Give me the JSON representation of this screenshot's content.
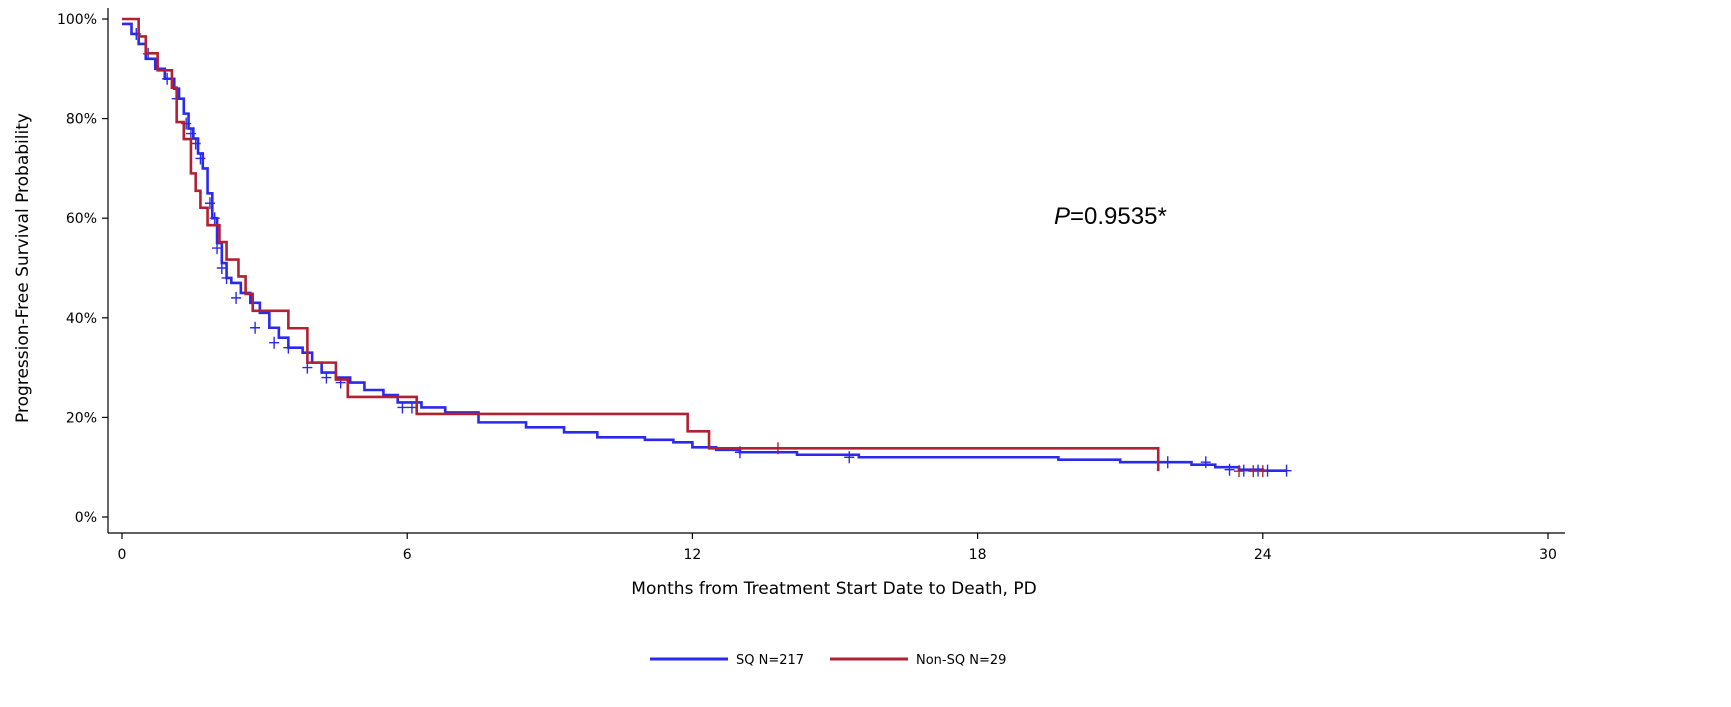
{
  "chart_data": {
    "type": "line",
    "xlabel": "Months from Treatment Start Date to Death, PD",
    "ylabel": "Progression-Free Survival Probability",
    "xlim": [
      0,
      30
    ],
    "ylim": [
      0,
      100
    ],
    "x_ticks": [
      0,
      6,
      12,
      18,
      24,
      30
    ],
    "x_tick_labels": [
      "0",
      "6",
      "12",
      "18",
      "24",
      "30"
    ],
    "y_ticks": [
      0,
      20,
      40,
      60,
      80,
      100
    ],
    "y_tick_labels": [
      "0%",
      "20%",
      "40%",
      "60%",
      "80%",
      "100%"
    ],
    "grid": false,
    "step": true,
    "legend": {
      "placement": "bottom-center"
    },
    "annotation": {
      "p_label": "P",
      "p_value": "=0.9535*"
    },
    "series": [
      {
        "name": "SQ N=217",
        "color": "#2a2aee",
        "x": [
          0,
          0.2,
          0.35,
          0.5,
          0.7,
          0.9,
          1.1,
          1.2,
          1.3,
          1.4,
          1.5,
          1.6,
          1.7,
          1.8,
          1.9,
          2.0,
          2.1,
          2.2,
          2.3,
          2.5,
          2.7,
          2.9,
          3.1,
          3.3,
          3.5,
          3.8,
          4.0,
          4.2,
          4.5,
          4.8,
          5.1,
          5.5,
          5.8,
          6.3,
          6.8,
          7.5,
          8.5,
          9.3,
          10.0,
          11.0,
          11.6,
          12.0,
          12.5,
          13.0,
          14.2,
          15.5,
          19.7,
          21.0,
          22.5,
          23.0,
          23.5,
          24.0,
          24.5
        ],
        "y": [
          99,
          97,
          95,
          92,
          90,
          88,
          86,
          84,
          81,
          78,
          76,
          73,
          70,
          65,
          60,
          55,
          51,
          48,
          47,
          45,
          43,
          41,
          38,
          36,
          34,
          33,
          31,
          29,
          28,
          27,
          25.5,
          24.5,
          23,
          22,
          21,
          19,
          18,
          17,
          16,
          15.5,
          15,
          14,
          13.5,
          13,
          12.5,
          12,
          11.5,
          11,
          10.5,
          10,
          9.5,
          9.3,
          9.3
        ],
        "censor_x": [
          0.3,
          0.55,
          0.95,
          1.15,
          1.35,
          1.45,
          1.55,
          1.65,
          1.85,
          1.95,
          2.0,
          2.1,
          2.2,
          2.4,
          2.8,
          3.2,
          3.5,
          3.9,
          4.3,
          4.6,
          5.9,
          6.1,
          13.0,
          15.3,
          22.0,
          22.8,
          23.3,
          23.6,
          23.9,
          24.1,
          24.5
        ],
        "censor_y": [
          97,
          93,
          88,
          84,
          79,
          77,
          75,
          72,
          63,
          60,
          54,
          50,
          48,
          44,
          38,
          35,
          34,
          30,
          28,
          27,
          22,
          22,
          13,
          12,
          11,
          11,
          9.5,
          9.3,
          9.3,
          9.3,
          9.3
        ]
      },
      {
        "name": "Non-SQ N=29",
        "color": "#b22034",
        "x": [
          0,
          0.35,
          0.5,
          0.75,
          0.95,
          1.05,
          1.15,
          1.3,
          1.45,
          1.55,
          1.65,
          1.8,
          1.9,
          2.05,
          2.2,
          2.45,
          2.6,
          2.75,
          3.5,
          3.9,
          4.5,
          4.75,
          6.2,
          11.9,
          12.35,
          21.8
        ],
        "y": [
          100,
          96.5,
          93.1,
          89.7,
          89.7,
          86.2,
          79.3,
          75.9,
          69.0,
          65.5,
          62.1,
          58.6,
          58.6,
          55.2,
          51.7,
          48.3,
          44.8,
          41.4,
          37.9,
          31.0,
          27.6,
          24.1,
          20.7,
          17.2,
          13.8,
          9.2
        ],
        "censor_x": [
          13.8,
          23.5,
          23.8,
          24.0
        ],
        "censor_y": [
          13.8,
          9.2,
          9.2,
          9.2
        ]
      }
    ]
  }
}
